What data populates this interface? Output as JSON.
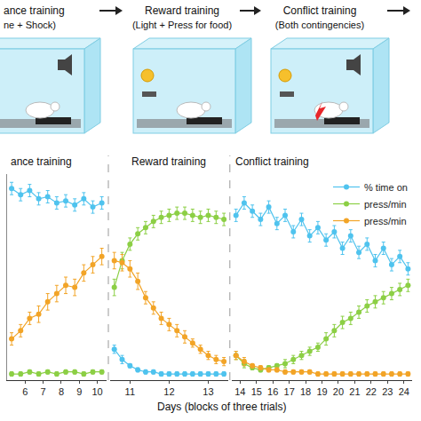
{
  "diagram": {
    "panels": [
      {
        "title": "ance training",
        "subtitle": "ne + Shock)"
      },
      {
        "title": "Reward training",
        "subtitle": "(Light + Press for food)"
      },
      {
        "title": "Conflict training",
        "subtitle": "(Both contingencies)"
      }
    ]
  },
  "chart_data": {
    "type": "line",
    "marker": "circle",
    "line_style": "solid",
    "xlabel": "Days (blocks of three trials)",
    "ylim": [
      0,
      100
    ],
    "yticks": [],
    "tick_labels": "x",
    "grid": false,
    "legend": "upper right",
    "series": [
      {
        "name": "% time on",
        "color": "#4fc3ee"
      },
      {
        "name": "press/min",
        "color": "#8ccf45"
      },
      {
        "name": "press/min",
        "color": "#f2a427"
      }
    ],
    "panels": [
      {
        "title": "ance training",
        "xlim": [
          5,
          10.5
        ],
        "xticks": [
          6,
          7,
          8,
          9,
          10
        ],
        "x": [
          5.25,
          5.75,
          6.25,
          6.75,
          7.25,
          7.75,
          8.25,
          8.75,
          9.25,
          9.75,
          10.25
        ],
        "values": [
          [
            93,
            90,
            92,
            88,
            89,
            86,
            87,
            85,
            88,
            84,
            86
          ],
          [
            3,
            3,
            4,
            3,
            4,
            3,
            4,
            4,
            3,
            4,
            4
          ],
          [
            20,
            24,
            30,
            32,
            38,
            42,
            46,
            45,
            52,
            56,
            60
          ]
        ],
        "errors": [
          [
            3,
            3,
            3,
            3,
            3,
            3,
            3,
            3,
            3,
            3,
            3
          ],
          [
            1,
            1,
            1,
            1,
            1,
            1,
            1,
            1,
            1,
            1,
            1
          ],
          [
            3,
            3,
            3,
            4,
            4,
            4,
            4,
            4,
            4,
            4,
            4
          ]
        ]
      },
      {
        "title": "Reward training",
        "xlim": [
          10.5,
          13.5
        ],
        "xticks": [
          11,
          12,
          13
        ],
        "x": [
          10.6,
          10.8,
          11,
          11.2,
          11.4,
          11.6,
          11.8,
          12,
          12.2,
          12.4,
          12.6,
          12.8,
          13,
          13.2,
          13.4
        ],
        "values": [
          [
            15,
            10,
            7,
            5,
            4,
            4,
            3,
            3,
            3,
            3,
            3,
            3,
            3,
            3,
            3
          ],
          [
            45,
            58,
            66,
            71,
            74,
            77,
            79,
            80,
            81,
            81,
            80,
            79,
            80,
            79,
            78
          ],
          [
            58,
            57,
            54,
            48,
            40,
            35,
            30,
            27,
            24,
            21,
            18,
            15,
            12,
            10,
            9
          ]
        ],
        "errors": [
          [
            2,
            2,
            1,
            1,
            1,
            1,
            1,
            1,
            1,
            1,
            1,
            1,
            1,
            1,
            1
          ],
          [
            4,
            4,
            3,
            3,
            3,
            3,
            3,
            3,
            3,
            3,
            3,
            3,
            3,
            3,
            3
          ],
          [
            4,
            4,
            4,
            4,
            3,
            3,
            3,
            3,
            3,
            3,
            2,
            2,
            2,
            2,
            2
          ]
        ]
      },
      {
        "title": "Conflict training",
        "xlim": [
          13.5,
          24.5
        ],
        "xticks": [
          14,
          15,
          16,
          17,
          18,
          19,
          20,
          21,
          22,
          23,
          24
        ],
        "x": [
          13.75,
          14.25,
          14.75,
          15.25,
          15.75,
          16.25,
          16.75,
          17.25,
          17.75,
          18.25,
          18.75,
          19.25,
          19.75,
          20.25,
          20.75,
          21.25,
          21.75,
          22.25,
          22.75,
          23.25,
          23.75,
          24.25
        ],
        "values": [
          [
            80,
            86,
            82,
            78,
            84,
            76,
            80,
            72,
            78,
            70,
            74,
            68,
            72,
            64,
            70,
            62,
            66,
            58,
            64,
            56,
            60,
            54
          ],
          [
            12,
            8,
            6,
            5,
            6,
            7,
            8,
            10,
            12,
            14,
            16,
            20,
            24,
            28,
            30,
            33,
            36,
            38,
            40,
            42,
            44,
            46
          ],
          [
            12,
            9,
            7,
            6,
            5,
            5,
            4,
            4,
            4,
            4,
            3,
            3,
            3,
            3,
            3,
            3,
            3,
            3,
            3,
            3,
            3,
            3
          ]
        ],
        "errors": [
          [
            3,
            3,
            3,
            3,
            3,
            3,
            3,
            3,
            3,
            3,
            3,
            3,
            3,
            3,
            3,
            3,
            3,
            3,
            3,
            3,
            3,
            3
          ],
          [
            2,
            2,
            1,
            1,
            1,
            1,
            2,
            2,
            2,
            2,
            2,
            3,
            3,
            3,
            3,
            3,
            3,
            3,
            3,
            3,
            3,
            3
          ],
          [
            2,
            2,
            1,
            1,
            1,
            1,
            1,
            1,
            1,
            1,
            1,
            1,
            1,
            1,
            1,
            1,
            1,
            1,
            1,
            1,
            1,
            1
          ]
        ]
      }
    ]
  }
}
